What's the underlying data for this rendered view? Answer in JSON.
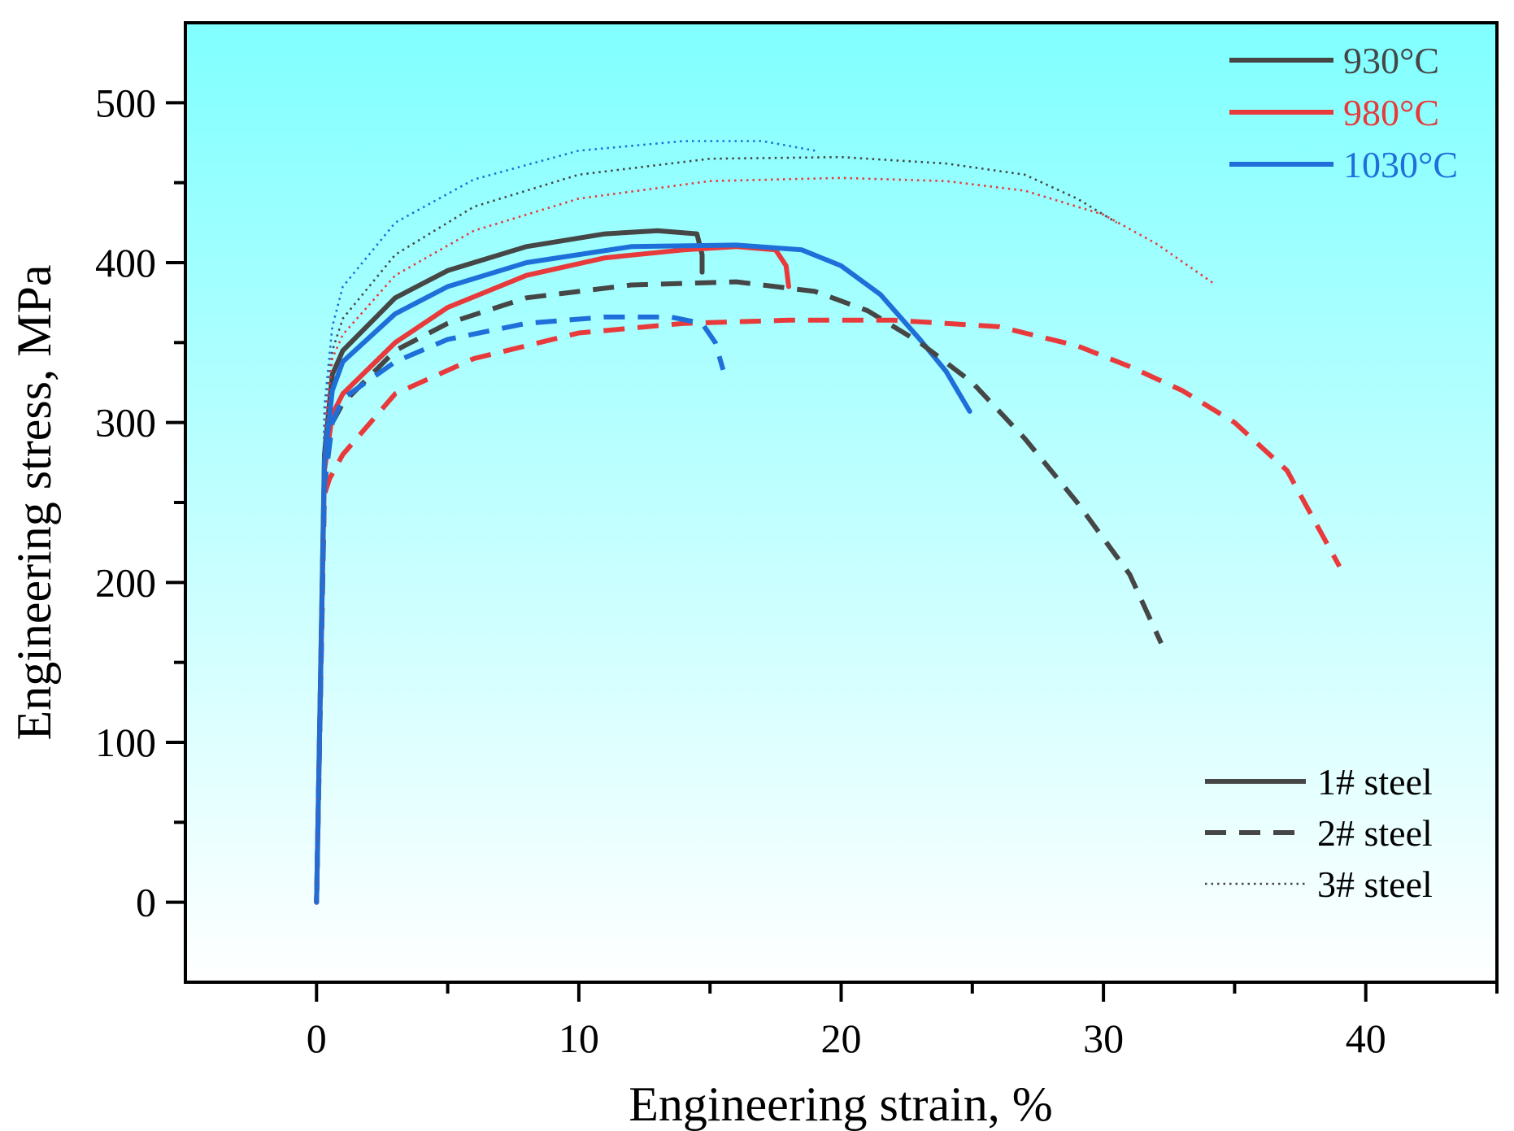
{
  "chart_data": {
    "type": "line",
    "title": "",
    "xlabel": "Engineering strain, %",
    "ylabel": "Engineering stress, MPa",
    "xlim": [
      -5,
      45
    ],
    "ylim": [
      -50,
      550
    ],
    "xticks": [
      0,
      10,
      20,
      30,
      40
    ],
    "yticks": [
      0,
      100,
      200,
      300,
      400,
      500
    ],
    "grid": false,
    "background": "gradient cyan (top) to white (bottom)",
    "colors": {
      "930°C": "#464646",
      "980°C": "#e8393b",
      "1030°C": "#1e6fd9",
      "bg_top": "#80ffff",
      "bg_bottom": "#ffffff"
    },
    "legend_temperature": [
      {
        "label": "930°C",
        "color": "#464646"
      },
      {
        "label": "980°C",
        "color": "#e8393b"
      },
      {
        "label": "1030°C",
        "color": "#1e6fd9"
      }
    ],
    "legend_steel": [
      {
        "label": "1# steel",
        "style": "solid"
      },
      {
        "label": "2# steel",
        "style": "dashed"
      },
      {
        "label": "3# steel",
        "style": "dotted"
      }
    ],
    "series": [
      {
        "name": "1# steel 930°C",
        "temperature": "930°C",
        "steel": "1#",
        "style": "solid",
        "points": [
          [
            0,
            0
          ],
          [
            0.3,
            280
          ],
          [
            0.6,
            330
          ],
          [
            1,
            345
          ],
          [
            3,
            378
          ],
          [
            5,
            395
          ],
          [
            8,
            410
          ],
          [
            11,
            418
          ],
          [
            13,
            420
          ],
          [
            14.5,
            418
          ],
          [
            14.7,
            405
          ],
          [
            14.7,
            394
          ]
        ]
      },
      {
        "name": "1# steel 980°C",
        "temperature": "980°C",
        "steel": "1#",
        "style": "solid",
        "points": [
          [
            0,
            0
          ],
          [
            0.3,
            270
          ],
          [
            0.6,
            305
          ],
          [
            1,
            318
          ],
          [
            3,
            350
          ],
          [
            5,
            372
          ],
          [
            8,
            392
          ],
          [
            11,
            403
          ],
          [
            14,
            408
          ],
          [
            16,
            410
          ],
          [
            17.5,
            408
          ],
          [
            17.9,
            398
          ],
          [
            18,
            385
          ]
        ]
      },
      {
        "name": "1# steel 1030°C",
        "temperature": "1030°C",
        "steel": "1#",
        "style": "solid",
        "points": [
          [
            0,
            0
          ],
          [
            0.3,
            275
          ],
          [
            0.6,
            320
          ],
          [
            1,
            338
          ],
          [
            3,
            368
          ],
          [
            5,
            385
          ],
          [
            8,
            400
          ],
          [
            12,
            410
          ],
          [
            16,
            411
          ],
          [
            18.5,
            408
          ],
          [
            20,
            398
          ],
          [
            21.5,
            380
          ],
          [
            23,
            352
          ],
          [
            24,
            332
          ],
          [
            24.9,
            307
          ]
        ]
      },
      {
        "name": "2# steel 930°C",
        "temperature": "930°C",
        "steel": "2#",
        "style": "dashed",
        "points": [
          [
            0,
            0
          ],
          [
            0.3,
            260
          ],
          [
            0.6,
            300
          ],
          [
            1,
            312
          ],
          [
            3,
            345
          ],
          [
            5,
            362
          ],
          [
            8,
            378
          ],
          [
            12,
            386
          ],
          [
            16,
            388
          ],
          [
            19,
            382
          ],
          [
            21,
            370
          ],
          [
            23,
            350
          ],
          [
            25,
            325
          ],
          [
            27,
            290
          ],
          [
            29,
            250
          ],
          [
            31,
            205
          ],
          [
            32.2,
            162
          ]
        ]
      },
      {
        "name": "2# steel 980°C",
        "temperature": "980°C",
        "steel": "2#",
        "style": "dashed",
        "points": [
          [
            0,
            0
          ],
          [
            0.3,
            255
          ],
          [
            0.5,
            265
          ],
          [
            1,
            280
          ],
          [
            3,
            318
          ],
          [
            6,
            340
          ],
          [
            10,
            356
          ],
          [
            14,
            362
          ],
          [
            18,
            364
          ],
          [
            22,
            364
          ],
          [
            26,
            360
          ],
          [
            29,
            348
          ],
          [
            31,
            335
          ],
          [
            33,
            320
          ],
          [
            35,
            300
          ],
          [
            37,
            270
          ],
          [
            39,
            210
          ]
        ]
      },
      {
        "name": "2# steel 1030°C",
        "temperature": "1030°C",
        "steel": "2#",
        "style": "dashed",
        "points": [
          [
            0,
            0
          ],
          [
            0.3,
            262
          ],
          [
            0.6,
            300
          ],
          [
            1,
            315
          ],
          [
            3,
            338
          ],
          [
            5,
            352
          ],
          [
            8,
            362
          ],
          [
            11,
            366
          ],
          [
            13.5,
            366
          ],
          [
            14.7,
            362
          ],
          [
            15.2,
            350
          ],
          [
            15.5,
            333
          ]
        ]
      },
      {
        "name": "3# steel 930°C",
        "temperature": "930°C",
        "steel": "3#",
        "style": "dotted",
        "points": [
          [
            0,
            0
          ],
          [
            0.3,
            300
          ],
          [
            0.6,
            345
          ],
          [
            1,
            365
          ],
          [
            3,
            405
          ],
          [
            6,
            435
          ],
          [
            10,
            455
          ],
          [
            15,
            465
          ],
          [
            20,
            466
          ],
          [
            24,
            462
          ],
          [
            27,
            455
          ],
          [
            29,
            440
          ],
          [
            30.5,
            425
          ]
        ]
      },
      {
        "name": "3# steel 980°C",
        "temperature": "980°C",
        "steel": "3#",
        "style": "dotted",
        "points": [
          [
            0,
            0
          ],
          [
            0.3,
            295
          ],
          [
            0.6,
            340
          ],
          [
            1,
            355
          ],
          [
            3,
            392
          ],
          [
            6,
            420
          ],
          [
            10,
            440
          ],
          [
            15,
            451
          ],
          [
            20,
            453
          ],
          [
            24,
            451
          ],
          [
            27,
            445
          ],
          [
            30,
            430
          ],
          [
            32,
            412
          ],
          [
            34.2,
            387
          ]
        ]
      },
      {
        "name": "3# steel 1030°C",
        "temperature": "1030°C",
        "steel": "3#",
        "style": "dotted",
        "points": [
          [
            0,
            0
          ],
          [
            0.3,
            310
          ],
          [
            0.6,
            360
          ],
          [
            1,
            385
          ],
          [
            3,
            425
          ],
          [
            6,
            452
          ],
          [
            10,
            470
          ],
          [
            14,
            476
          ],
          [
            17,
            476
          ],
          [
            19,
            470
          ]
        ]
      }
    ]
  }
}
